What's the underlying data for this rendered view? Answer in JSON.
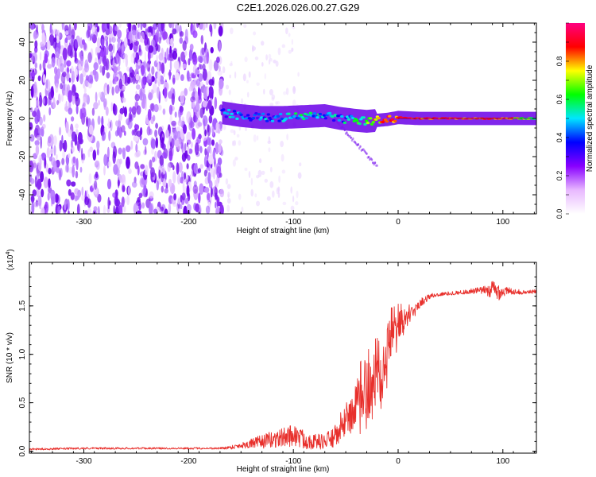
{
  "title": "C2E1.2026.026.00.27.G29",
  "chart_data": [
    {
      "type": "heatmap",
      "panel": "spectrogram",
      "xlabel": "Height of straight line (km)",
      "ylabel": "Frequency (Hz)",
      "xlim": [
        -352,
        132
      ],
      "ylim": [
        -50,
        50
      ],
      "xticks": [
        -300,
        -200,
        -100,
        0,
        100
      ],
      "xtick_labels": [
        "-300",
        "-200",
        "-100",
        "0",
        "100"
      ],
      "yticks": [
        -40,
        -20,
        0,
        20,
        40
      ],
      "ytick_labels": [
        "-40",
        "-20",
        "0",
        "20",
        "40"
      ],
      "noise_region_x": [
        -352,
        -168
      ],
      "signal_trace": {
        "x": [
          -168,
          -150,
          -130,
          -110,
          -90,
          -70,
          -55,
          -40,
          -30,
          -20,
          -10,
          0,
          20,
          40,
          60,
          80,
          100,
          132
        ],
        "freq_hz": [
          3,
          1.5,
          0.5,
          0.5,
          1,
          1.5,
          0,
          -1,
          -1.5,
          -1,
          -0.5,
          0.5,
          0,
          0,
          0,
          0,
          0,
          0
        ],
        "amplitude": [
          0.45,
          0.4,
          0.4,
          0.45,
          0.5,
          0.45,
          0.45,
          0.55,
          0.6,
          0.75,
          0.85,
          0.9,
          0.9,
          0.9,
          0.9,
          0.9,
          0.9,
          0.5
        ]
      },
      "colorbar": {
        "label": "Normalized spectral amplitude",
        "range": [
          0,
          1
        ],
        "ticks": [
          0,
          0.2,
          0.4,
          0.6,
          0.8
        ],
        "tick_labels": [
          "0.0",
          "0.2",
          "0.4",
          "0.6",
          "0.8"
        ],
        "colors": [
          "#ffffff",
          "#e8b8ff",
          "#8800ff",
          "#0000ff",
          "#00e6ff",
          "#00ff00",
          "#ffff00",
          "#ff0000",
          "#ff0080"
        ]
      }
    },
    {
      "type": "line",
      "panel": "snr",
      "xlabel": "Height of straight line (km)",
      "ylabel": "SNR (10 * v/v)",
      "scale_label": "(x10",
      "scale_exponent": "4",
      "scale_suffix": ")",
      "xlim": [
        -352,
        132
      ],
      "ylim": [
        -0.02,
        1.95
      ],
      "xticks": [
        -300,
        -200,
        -100,
        0,
        100
      ],
      "xtick_labels": [
        "-300",
        "-200",
        "-100",
        "0",
        "100"
      ],
      "yticks": [
        0.0,
        0.5,
        1.0,
        1.5
      ],
      "ytick_labels": [
        "0.0",
        "0.5",
        "1.0",
        "1.5"
      ],
      "color": "#e8302c",
      "envelope": {
        "x": [
          -352,
          -300,
          -250,
          -200,
          -170,
          -160,
          -150,
          -140,
          -130,
          -120,
          -110,
          -100,
          -90,
          -80,
          -70,
          -60,
          -55,
          -50,
          -45,
          -40,
          -35,
          -30,
          -25,
          -20,
          -15,
          -10,
          -5,
          0,
          5,
          10,
          15,
          20,
          30,
          40,
          50,
          60,
          70,
          80,
          85,
          90,
          95,
          100,
          110,
          120,
          132
        ],
        "mean": [
          0.02,
          0.03,
          0.03,
          0.03,
          0.03,
          0.04,
          0.06,
          0.08,
          0.1,
          0.12,
          0.14,
          0.17,
          0.12,
          0.1,
          0.1,
          0.15,
          0.22,
          0.3,
          0.38,
          0.45,
          0.55,
          0.62,
          0.7,
          0.85,
          0.95,
          1.1,
          1.2,
          1.3,
          1.35,
          1.4,
          1.45,
          1.52,
          1.6,
          1.62,
          1.63,
          1.64,
          1.65,
          1.66,
          1.66,
          1.66,
          1.65,
          1.65,
          1.65,
          1.64,
          1.65
        ],
        "spread": [
          0.01,
          0.01,
          0.01,
          0.01,
          0.01,
          0.02,
          0.03,
          0.05,
          0.07,
          0.09,
          0.1,
          0.12,
          0.1,
          0.08,
          0.08,
          0.12,
          0.18,
          0.25,
          0.3,
          0.35,
          0.4,
          0.45,
          0.5,
          0.55,
          0.5,
          0.45,
          0.35,
          0.25,
          0.18,
          0.12,
          0.08,
          0.05,
          0.03,
          0.02,
          0.02,
          0.02,
          0.03,
          0.04,
          0.05,
          0.12,
          0.1,
          0.06,
          0.03,
          0.02,
          0.02
        ]
      }
    }
  ]
}
